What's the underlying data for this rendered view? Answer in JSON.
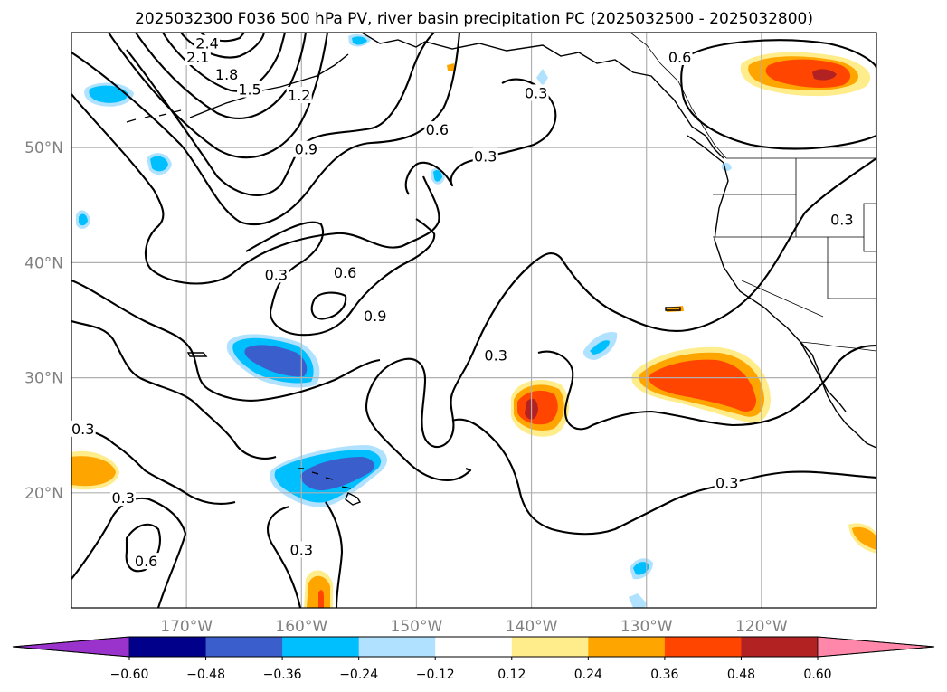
{
  "title": "2025032300 F036 500 hPa PV, river basin precipitation PC (2025032500 - 2025032800)",
  "map": {
    "extent": {
      "lon_min": -180,
      "lon_max": -110,
      "lat_min": 10,
      "lat_max": 60
    },
    "lon_ticks": [
      {
        "lon": -170,
        "label": "170°W"
      },
      {
        "lon": -160,
        "label": "160°W"
      },
      {
        "lon": -150,
        "label": "150°W"
      },
      {
        "lon": -140,
        "label": "140°W"
      },
      {
        "lon": -130,
        "label": "130°W"
      },
      {
        "lon": -120,
        "label": "120°W"
      }
    ],
    "lat_ticks": [
      {
        "lat": 20,
        "label": "20°N"
      },
      {
        "lat": 30,
        "label": "30°N"
      },
      {
        "lat": 40,
        "label": "40°N"
      },
      {
        "lat": 50,
        "label": "50°N"
      }
    ],
    "grid": true,
    "contour_labels": [
      {
        "text": "2.4",
        "lon": -168.2,
        "lat": 59.0
      },
      {
        "text": "2.1",
        "lon": -169.0,
        "lat": 57.8
      },
      {
        "text": "1.8",
        "lon": -166.5,
        "lat": 56.3
      },
      {
        "text": "1.5",
        "lon": -164.5,
        "lat": 55.0
      },
      {
        "text": "1.2",
        "lon": -160.2,
        "lat": 54.5
      },
      {
        "text": "0.9",
        "lon": -159.6,
        "lat": 49.8
      },
      {
        "text": "0.6",
        "lon": -148.2,
        "lat": 51.5
      },
      {
        "text": "0.3",
        "lon": -139.6,
        "lat": 54.7
      },
      {
        "text": "0.3",
        "lon": -144.0,
        "lat": 49.2
      },
      {
        "text": "0.6",
        "lon": -127.1,
        "lat": 57.8
      },
      {
        "text": "0.3",
        "lon": -113.0,
        "lat": 43.7
      },
      {
        "text": "0.3",
        "lon": -162.2,
        "lat": 38.9
      },
      {
        "text": "0.6",
        "lon": -156.2,
        "lat": 39.1
      },
      {
        "text": "0.9",
        "lon": -153.6,
        "lat": 35.3
      },
      {
        "text": "0.3",
        "lon": -143.1,
        "lat": 31.9
      },
      {
        "text": "0.3",
        "lon": -179.0,
        "lat": 25.5
      },
      {
        "text": "0.3",
        "lon": -175.5,
        "lat": 19.5
      },
      {
        "text": "0.6",
        "lon": -173.5,
        "lat": 14.0
      },
      {
        "text": "0.3",
        "lon": -160.0,
        "lat": 15.0
      },
      {
        "text": "0.3",
        "lon": -123.0,
        "lat": 20.8
      }
    ]
  },
  "colorbar": {
    "colors": [
      "#9933cc",
      "#00008b",
      "#3a5fcd",
      "#00bfff",
      "#b0e2ff",
      "#ffffff",
      "#ffec8b",
      "#ffa500",
      "#ff4500",
      "#b22222",
      "#ff88aa"
    ],
    "tick_labels": [
      "−0.60",
      "−0.48",
      "−0.36",
      "−0.24",
      "−0.12",
      "0.12",
      "0.24",
      "0.36",
      "0.48",
      "0.60"
    ]
  }
}
